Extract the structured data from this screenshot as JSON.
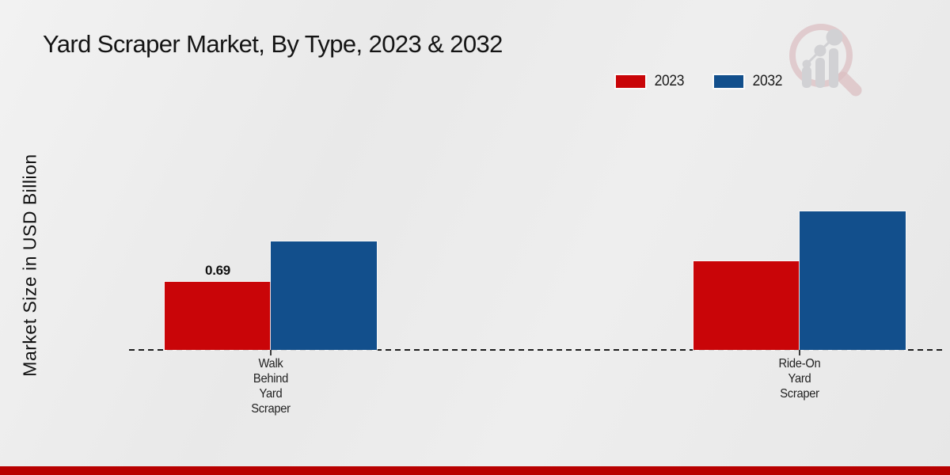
{
  "header": {
    "title": "Yard Scraper Market, By Type, 2023 & 2032"
  },
  "chart_data": {
    "type": "bar",
    "title": "Yard Scraper Market, By Type, 2023 & 2032",
    "ylabel": "Market Size in USD Billion",
    "xlabel": "",
    "categories": [
      "Walk Behind Yard Scraper",
      "Ride-On Yard Scraper"
    ],
    "category_label_lines": [
      [
        "Walk",
        "Behind",
        "Yard",
        "Scraper"
      ],
      [
        "Ride-On",
        "Yard",
        "Scraper"
      ]
    ],
    "series": [
      {
        "name": "2023",
        "color": "#c90508",
        "values": [
          0.69,
          0.9
        ],
        "value_labels": [
          "0.69",
          ""
        ]
      },
      {
        "name": "2032",
        "color": "#124f8c",
        "values": [
          1.1,
          1.4
        ],
        "value_labels": [
          "",
          ""
        ]
      }
    ],
    "ylim": [
      0,
      1.5
    ],
    "grid": false,
    "baseline_style": "dashed",
    "legend_position": "top-right"
  },
  "decor": {
    "bottom_bar_color": "#b80000",
    "watermark_icon": "magnifier-bar-chart-logo",
    "watermark_ring_color": "#cf9ba1",
    "watermark_bar_color": "#bcbcc2"
  }
}
